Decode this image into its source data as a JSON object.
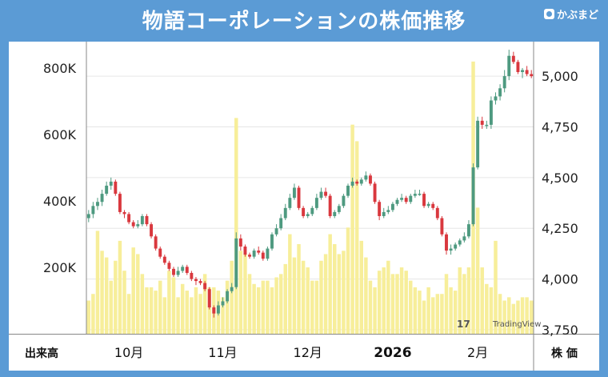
{
  "header": {
    "title": "物語コーポレーションの株価推移",
    "logo_text": "かぶまど"
  },
  "watermark": "TradingView",
  "footer": {
    "left_label": "出来高",
    "right_label": "株 価"
  },
  "colors": {
    "background": "#5b9bd5",
    "up": "#4e9a80",
    "down": "#d9383e",
    "volume": "#f7ee9a",
    "grid": "#e6e6e6"
  },
  "chart_data": {
    "type": "candlestick",
    "xlabel": "",
    "month_labels": [
      {
        "label": "10月",
        "index": 9
      },
      {
        "label": "11月",
        "index": 30
      },
      {
        "label": "12月",
        "index": 49
      },
      {
        "label": "2026",
        "index": 68
      },
      {
        "label": "2月",
        "index": 87
      }
    ],
    "price_axis": {
      "label": "株 価",
      "ticks": [
        "3,750",
        "4,000",
        "4,250",
        "4,500",
        "4,750",
        "5,000"
      ],
      "range": [
        3730,
        5170
      ]
    },
    "volume_axis": {
      "label": "出来高",
      "ticks": [
        "200K",
        "400K",
        "600K",
        "800K"
      ],
      "range": [
        0,
        880000
      ]
    },
    "series": [
      {
        "type": "ohlc",
        "open": [
          4300,
          4320,
          4360,
          4380,
          4420,
          4460,
          4480,
          4420,
          4330,
          4320,
          4280,
          4260,
          4270,
          4310,
          4270,
          4210,
          4150,
          4110,
          4080,
          4050,
          4020,
          4040,
          4060,
          4030,
          4000,
          3990,
          3980,
          3950,
          3860,
          3830,
          3870,
          3890,
          3940,
          3960,
          4200,
          4160,
          4120,
          4110,
          4140,
          4130,
          4100,
          4150,
          4220,
          4250,
          4300,
          4350,
          4400,
          4450,
          4350,
          4310,
          4320,
          4350,
          4400,
          4430,
          4410,
          4310,
          4330,
          4360,
          4410,
          4460,
          4480,
          4470,
          4490,
          4510,
          4470,
          4380,
          4310,
          4330,
          4340,
          4370,
          4390,
          4400,
          4380,
          4410,
          4420,
          4420,
          4360,
          4370,
          4350,
          4300,
          4220,
          4140,
          4150,
          4170,
          4190,
          4210,
          4270,
          4550,
          4780,
          4760,
          4760,
          4880,
          4900,
          4940,
          5000,
          5100,
          5070,
          5020,
          5030,
          5010
        ],
        "close": [
          4320,
          4360,
          4380,
          4420,
          4460,
          4480,
          4420,
          4330,
          4320,
          4280,
          4260,
          4270,
          4310,
          4270,
          4210,
          4150,
          4110,
          4080,
          4050,
          4020,
          4040,
          4060,
          4030,
          4000,
          3990,
          3980,
          3950,
          3860,
          3830,
          3870,
          3890,
          3940,
          3960,
          4200,
          4160,
          4120,
          4110,
          4140,
          4130,
          4100,
          4150,
          4220,
          4250,
          4300,
          4350,
          4400,
          4450,
          4350,
          4310,
          4320,
          4350,
          4400,
          4430,
          4410,
          4310,
          4330,
          4360,
          4410,
          4460,
          4480,
          4470,
          4490,
          4510,
          4470,
          4380,
          4310,
          4330,
          4340,
          4370,
          4390,
          4400,
          4380,
          4410,
          4420,
          4420,
          4360,
          4370,
          4350,
          4300,
          4220,
          4140,
          4150,
          4170,
          4190,
          4210,
          4270,
          4550,
          4780,
          4760,
          4760,
          4880,
          4900,
          4940,
          5000,
          5100,
          5070,
          5020,
          5030,
          5010,
          5000
        ],
        "high": [
          4340,
          4380,
          4400,
          4440,
          4480,
          4500,
          4490,
          4430,
          4340,
          4330,
          4290,
          4290,
          4320,
          4320,
          4280,
          4220,
          4160,
          4120,
          4090,
          4060,
          4060,
          4070,
          4070,
          4040,
          4010,
          4000,
          3990,
          3960,
          3870,
          3890,
          3910,
          3950,
          3980,
          4230,
          4220,
          4170,
          4130,
          4150,
          4160,
          4140,
          4160,
          4230,
          4270,
          4320,
          4370,
          4420,
          4470,
          4460,
          4360,
          4330,
          4360,
          4420,
          4450,
          4450,
          4420,
          4340,
          4370,
          4420,
          4470,
          4500,
          4490,
          4500,
          4530,
          4520,
          4480,
          4390,
          4350,
          4360,
          4380,
          4400,
          4420,
          4410,
          4420,
          4440,
          4440,
          4430,
          4380,
          4380,
          4360,
          4310,
          4230,
          4170,
          4180,
          4200,
          4230,
          4290,
          4570,
          4800,
          4800,
          4780,
          4900,
          4920,
          4960,
          5030,
          5130,
          5120,
          5080,
          5040,
          5050,
          5030
        ],
        "low": [
          4280,
          4300,
          4340,
          4360,
          4410,
          4440,
          4410,
          4320,
          4300,
          4270,
          4250,
          4250,
          4260,
          4260,
          4200,
          4140,
          4100,
          4070,
          4040,
          4010,
          4010,
          4030,
          4020,
          3990,
          3970,
          3970,
          3940,
          3850,
          3810,
          3820,
          3860,
          3880,
          3930,
          3950,
          4140,
          4110,
          4100,
          4100,
          4120,
          4090,
          4090,
          4140,
          4210,
          4240,
          4290,
          4340,
          4390,
          4340,
          4300,
          4300,
          4310,
          4340,
          4390,
          4400,
          4300,
          4300,
          4320,
          4350,
          4400,
          4450,
          4460,
          4460,
          4480,
          4460,
          4370,
          4290,
          4300,
          4320,
          4330,
          4360,
          4380,
          4370,
          4370,
          4400,
          4410,
          4350,
          4350,
          4340,
          4290,
          4210,
          4120,
          4120,
          4140,
          4160,
          4180,
          4200,
          4260,
          4540,
          4740,
          4740,
          4740,
          4860,
          4880,
          4920,
          4980,
          5060,
          5010,
          4990,
          5000,
          4990
        ]
      },
      {
        "type": "volume",
        "values": [
          100000,
          120000,
          310000,
          250000,
          230000,
          160000,
          220000,
          280000,
          190000,
          120000,
          260000,
          240000,
          180000,
          140000,
          140000,
          130000,
          160000,
          110000,
          190000,
          170000,
          110000,
          150000,
          130000,
          110000,
          140000,
          120000,
          180000,
          140000,
          140000,
          130000,
          110000,
          160000,
          220000,
          650000,
          250000,
          240000,
          180000,
          150000,
          140000,
          160000,
          160000,
          140000,
          170000,
          180000,
          210000,
          300000,
          230000,
          270000,
          220000,
          200000,
          160000,
          160000,
          220000,
          240000,
          300000,
          270000,
          240000,
          250000,
          320000,
          630000,
          580000,
          280000,
          230000,
          160000,
          140000,
          190000,
          200000,
          220000,
          180000,
          180000,
          200000,
          190000,
          160000,
          140000,
          130000,
          100000,
          140000,
          110000,
          120000,
          120000,
          180000,
          140000,
          130000,
          200000,
          180000,
          200000,
          820000,
          380000,
          200000,
          150000,
          140000,
          280000,
          120000,
          100000,
          110000,
          90000,
          100000,
          110000,
          110000,
          100000
        ]
      }
    ]
  }
}
